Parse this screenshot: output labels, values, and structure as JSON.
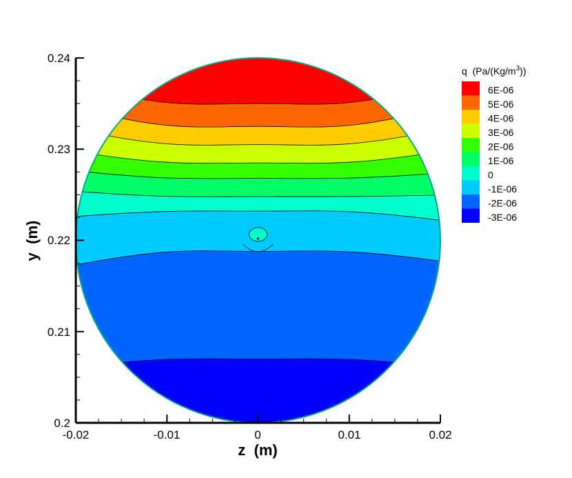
{
  "chart_data": {
    "type": "contour",
    "xlabel": "z  (m)",
    "ylabel": "y  (m)",
    "xlim": [
      -0.02,
      0.02
    ],
    "ylim": [
      0.2,
      0.24
    ],
    "x_ticks": [
      "-0.02",
      "-0.01",
      "0",
      "0.01",
      "0.02"
    ],
    "y_ticks": [
      "0.2",
      "0.21",
      "0.22",
      "0.23",
      "0.24"
    ],
    "legend": {
      "title": "q  (Pa/(Kg/m",
      "title_sup": "3",
      "title_end": "))",
      "placement": "top-right",
      "levels": [
        "6E-06",
        "5E-06",
        "4E-06",
        "3E-06",
        "2E-06",
        "1E-06",
        "0",
        "-1E-06",
        "-2E-06",
        "-3E-06"
      ],
      "colors": [
        "#ff0000",
        "#ff6600",
        "#ffcc00",
        "#ccff00",
        "#33ff00",
        "#00ff66",
        "#00ffcc",
        "#00ccff",
        "#0066ff",
        "#0000ff"
      ]
    },
    "domain": {
      "shape": "circle",
      "center": [
        0,
        0.22
      ],
      "radius": 0.02
    },
    "bands_top_to_bottom": [
      {
        "min": 6e-06,
        "color": "#ff0000",
        "y_left": 0.2375,
        "y_center": 0.235,
        "y_right": 0.2375
      },
      {
        "min": 5e-06,
        "color": "#ff6600",
        "y_left": 0.235,
        "y_center": 0.2325,
        "y_right": 0.235
      },
      {
        "min": 4e-06,
        "color": "#ffcc00",
        "y_left": 0.2325,
        "y_center": 0.2305,
        "y_right": 0.2325
      },
      {
        "min": 3e-06,
        "color": "#ccff00",
        "y_left": 0.23,
        "y_center": 0.2285,
        "y_right": 0.23
      },
      {
        "min": 2e-06,
        "color": "#33ff00",
        "y_left": 0.2278,
        "y_center": 0.2268,
        "y_right": 0.2275
      },
      {
        "min": 1e-06,
        "color": "#00ff66",
        "y_left": 0.2255,
        "y_center": 0.2248,
        "y_right": 0.225
      },
      {
        "min": 0,
        "color": "#00ffcc",
        "y_left": 0.2225,
        "y_center": 0.2232,
        "y_right": 0.222
      },
      {
        "min": -1e-06,
        "color": "#00ccff",
        "y_left": 0.217,
        "y_center": 0.2188,
        "y_right": 0.2175
      },
      {
        "min": -2e-06,
        "color": "#0066ff",
        "y_left": 0.206,
        "y_center": 0.207,
        "y_right": 0.206
      },
      {
        "min": -3e-06,
        "color": "#0000ff",
        "y_left": 0.2,
        "y_center": 0.2,
        "y_right": 0.2
      }
    ]
  }
}
